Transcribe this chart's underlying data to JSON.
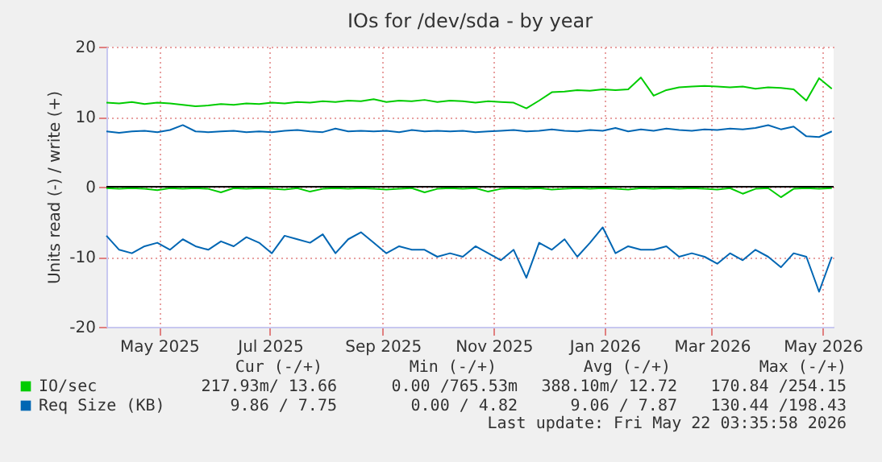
{
  "chart_data": {
    "type": "line",
    "title": "IOs for /dev/sda - by year",
    "ylabel": "Units read (-) / write (+)",
    "x": [
      "2025-04-17",
      "2025-04-24",
      "2025-05-01",
      "2025-05-08",
      "2025-05-15",
      "2025-05-22",
      "2025-05-29",
      "2025-06-05",
      "2025-06-12",
      "2025-06-19",
      "2025-06-26",
      "2025-07-03",
      "2025-07-10",
      "2025-07-17",
      "2025-07-24",
      "2025-07-31",
      "2025-08-07",
      "2025-08-14",
      "2025-08-21",
      "2025-08-28",
      "2025-09-04",
      "2025-09-11",
      "2025-09-18",
      "2025-09-25",
      "2025-10-02",
      "2025-10-09",
      "2025-10-16",
      "2025-10-23",
      "2025-10-30",
      "2025-11-06",
      "2025-11-13",
      "2025-11-20",
      "2025-11-27",
      "2025-12-04",
      "2025-12-11",
      "2025-12-18",
      "2025-12-25",
      "2026-01-01",
      "2026-01-08",
      "2026-01-15",
      "2026-01-22",
      "2026-01-29",
      "2026-02-05",
      "2026-02-12",
      "2026-02-19",
      "2026-02-26",
      "2026-03-05",
      "2026-03-12",
      "2026-03-19",
      "2026-03-26",
      "2026-04-02",
      "2026-04-09",
      "2026-04-16",
      "2026-04-23",
      "2026-04-30",
      "2026-05-07",
      "2026-05-14",
      "2026-05-21"
    ],
    "series": [
      {
        "name": "IO/sec",
        "color": "#00cc00",
        "values": [
          12.0,
          11.9,
          12.1,
          11.8,
          12.0,
          11.9,
          11.7,
          11.5,
          11.6,
          11.8,
          11.7,
          11.9,
          11.8,
          12.0,
          11.9,
          12.1,
          12.0,
          12.2,
          12.1,
          12.3,
          12.2,
          12.5,
          12.1,
          12.3,
          12.2,
          12.4,
          12.1,
          12.3,
          12.2,
          12.0,
          12.2,
          12.1,
          12.0,
          11.2,
          12.3,
          13.5,
          13.6,
          13.8,
          13.7,
          13.9,
          13.8,
          13.9,
          15.6,
          13.0,
          13.8,
          14.2,
          14.3,
          14.4,
          14.3,
          14.2,
          14.3,
          14.0,
          14.2,
          14.1,
          13.9,
          12.3,
          15.5,
          14.0
        ]
      },
      {
        "color": "#00cc00",
        "values": [
          -0.2,
          -0.3,
          -0.2,
          -0.3,
          -0.5,
          -0.2,
          -0.3,
          -0.2,
          -0.3,
          -0.8,
          -0.2,
          -0.3,
          -0.2,
          -0.3,
          -0.4,
          -0.2,
          -0.7,
          -0.3,
          -0.2,
          -0.3,
          -0.2,
          -0.3,
          -0.4,
          -0.3,
          -0.2,
          -0.8,
          -0.3,
          -0.2,
          -0.3,
          -0.2,
          -0.7,
          -0.3,
          -0.2,
          -0.3,
          -0.2,
          -0.4,
          -0.3,
          -0.2,
          -0.3,
          -0.2,
          -0.3,
          -0.4,
          -0.2,
          -0.3,
          -0.2,
          -0.3,
          -0.2,
          -0.3,
          -0.4,
          -0.2,
          -1.0,
          -0.3,
          -0.2,
          -1.5,
          -0.3,
          -0.2,
          -0.3,
          -0.2
        ]
      },
      {
        "name": "Req Size (KB)",
        "color": "#0066b3",
        "values": [
          7.9,
          7.7,
          7.9,
          8.0,
          7.8,
          8.1,
          8.8,
          7.9,
          7.8,
          7.9,
          8.0,
          7.8,
          7.9,
          7.8,
          8.0,
          8.1,
          7.9,
          7.8,
          8.3,
          7.9,
          8.0,
          7.9,
          8.0,
          7.8,
          8.1,
          7.9,
          8.0,
          7.9,
          8.0,
          7.8,
          7.9,
          8.0,
          8.1,
          7.9,
          8.0,
          8.2,
          8.0,
          7.9,
          8.1,
          8.0,
          8.4,
          7.9,
          8.2,
          8.0,
          8.3,
          8.1,
          8.0,
          8.2,
          8.1,
          8.3,
          8.2,
          8.4,
          8.8,
          8.2,
          8.6,
          7.2,
          7.1,
          7.9
        ]
      },
      {
        "color": "#0066b3",
        "values": [
          -7.0,
          -9.0,
          -9.5,
          -8.5,
          -8.0,
          -9.0,
          -7.5,
          -8.5,
          -9.0,
          -7.8,
          -8.5,
          -7.2,
          -8.0,
          -9.5,
          -7.0,
          -7.5,
          -8.0,
          -6.8,
          -9.5,
          -7.5,
          -6.5,
          -8.0,
          -9.5,
          -8.5,
          -9.0,
          -9.0,
          -10.0,
          -9.5,
          -10.0,
          -8.5,
          -9.5,
          -10.5,
          -9.0,
          -13.0,
          -8.0,
          -9.0,
          -7.5,
          -10.0,
          -8.0,
          -5.8,
          -9.5,
          -8.5,
          -9.0,
          -9.0,
          -8.5,
          -10.0,
          -9.5,
          -10.0,
          -11.0,
          -9.5,
          -10.5,
          -9.0,
          -10.0,
          -11.5,
          -9.5,
          -10.0,
          -15.0,
          -10.0
        ]
      }
    ],
    "xlim": [
      "2025-04-17",
      "2026-05-22"
    ],
    "xticks": [
      {
        "value": "2025-05-16",
        "label": "May 2025"
      },
      {
        "value": "2025-07-16",
        "label": "Jul 2025"
      },
      {
        "value": "2025-09-16",
        "label": "Sep 2025"
      },
      {
        "value": "2025-11-16",
        "label": "Nov 2025"
      },
      {
        "value": "2026-01-16",
        "label": "Jan 2026"
      },
      {
        "value": "2026-03-16",
        "label": "Mar 2026"
      },
      {
        "value": "2026-05-16",
        "label": "May 2026"
      }
    ],
    "ylim": [
      -20,
      20
    ],
    "yticks": [
      -20,
      -10,
      0,
      10,
      20
    ],
    "ref_lines": [
      {
        "axis": "y",
        "value": 0,
        "color": "#000000"
      }
    ],
    "grid": true,
    "legend": "bottom",
    "annotations": [
      "Cur (-/+)",
      "Min (-/+)",
      "Avg (-/+)",
      "Max (-/+)",
      "217.93m/ 13.66",
      "0.00 /765.53m",
      "388.10m/ 12.72",
      "170.84 /254.15",
      "9.86 /  7.75",
      "0.00 /  4.82",
      "9.06 /  7.87",
      "130.44 /198.43",
      "Last update: Fri May 22 03:35:58 2026"
    ]
  }
}
